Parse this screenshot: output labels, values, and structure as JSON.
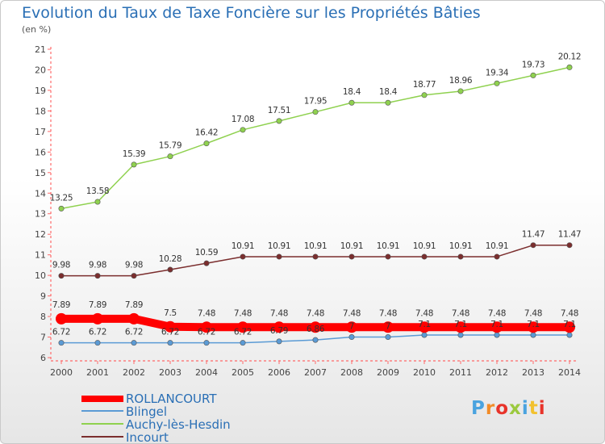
{
  "title": "Evolution du Taux de Taxe Foncière sur les Propriétés Bâties",
  "unit_label": "(en %)",
  "logo_text": "Proxiti",
  "chart_data": {
    "type": "line",
    "title": "Evolution du Taux de Taxe Foncière sur les Propriétés Bâties",
    "ylabel": "(en %)",
    "xlabel": "",
    "categories": [
      "2000",
      "2001",
      "2002",
      "2003",
      "2004",
      "2005",
      "2006",
      "2007",
      "2008",
      "2009",
      "2010",
      "2011",
      "2012",
      "2013",
      "2014"
    ],
    "ylim": [
      6,
      21
    ],
    "yticks": [
      "6",
      "7",
      "8",
      "9",
      "10",
      "11",
      "12",
      "13",
      "14",
      "15",
      "16",
      "17",
      "18",
      "19",
      "20",
      "21"
    ],
    "grid": false,
    "legend_position": "bottom-left",
    "series": [
      {
        "name": "ROLLANCOURT",
        "color": "#ff0000",
        "values": [
          7.89,
          7.89,
          7.89,
          7.5,
          7.48,
          7.48,
          7.48,
          7.48,
          7.48,
          7.48,
          7.48,
          7.48,
          7.48,
          7.48,
          7.48
        ],
        "labels": [
          "7.89",
          "7.89",
          "7.89",
          "7.5",
          "7.48",
          "7.48",
          "7.48",
          "7.48",
          "7.48",
          "7.48",
          "7.48",
          "7.48",
          "7.48",
          "7.48",
          "7.48"
        ]
      },
      {
        "name": "Blingel",
        "color": "#5b9bd5",
        "values": [
          6.72,
          6.72,
          6.72,
          6.72,
          6.72,
          6.72,
          6.79,
          6.86,
          7.0,
          7.0,
          7.1,
          7.1,
          7.1,
          7.1,
          7.1
        ],
        "labels": [
          "6.72",
          "6.72",
          "6.72",
          "6.72",
          "6.72",
          "6.72",
          "6.79",
          "6.86",
          "7",
          "7",
          "7.1",
          "7.1",
          "7.1",
          "7.1",
          "7.1"
        ]
      },
      {
        "name": "Auchy-lès-Hesdin",
        "color": "#8fd14f",
        "values": [
          13.25,
          13.58,
          15.39,
          15.79,
          16.42,
          17.08,
          17.51,
          17.95,
          18.4,
          18.4,
          18.77,
          18.96,
          19.34,
          19.73,
          20.12
        ],
        "labels": [
          "13.25",
          "13.58",
          "15.39",
          "15.79",
          "16.42",
          "17.08",
          "17.51",
          "17.95",
          "18.4",
          "18.4",
          "18.77",
          "18.96",
          "19.34",
          "19.73",
          "20.12"
        ]
      },
      {
        "name": "Incourt",
        "color": "#7b2e2e",
        "values": [
          9.98,
          9.98,
          9.98,
          10.28,
          10.59,
          10.91,
          10.91,
          10.91,
          10.91,
          10.91,
          10.91,
          10.91,
          10.91,
          11.47,
          11.47
        ],
        "labels": [
          "9.98",
          "9.98",
          "9.98",
          "10.28",
          "10.59",
          "10.91",
          "10.91",
          "10.91",
          "10.91",
          "10.91",
          "10.91",
          "10.91",
          "10.91",
          "11.47",
          "11.47"
        ]
      }
    ]
  }
}
